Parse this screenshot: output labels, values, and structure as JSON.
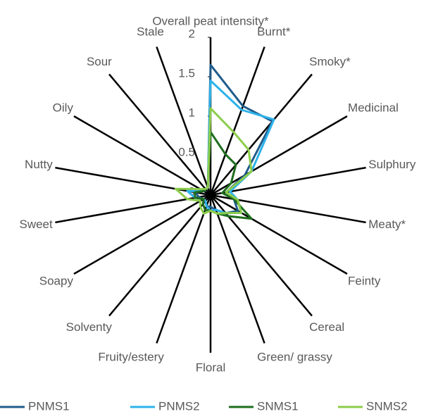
{
  "chart_data": {
    "type": "radar",
    "categories": [
      "Overall peat intensity*",
      "Burnt*",
      "Smoky*",
      "Medicinal",
      "Sulphury",
      "Meaty*",
      "Feinty",
      "Cereal",
      "Green/ grassy",
      "Floral",
      "Fruity/estery",
      "Solventy",
      "Soapy",
      "Sweet",
      "Nutty",
      "Oily",
      "Sour",
      "Stale"
    ],
    "rlim": [
      0,
      2
    ],
    "rticks": [
      0,
      0.5,
      1,
      1.5,
      2
    ],
    "legend": "bottom",
    "series": [
      {
        "name": "PNMS1",
        "color": "#1f5c8b",
        "values": [
          1.65,
          1.2,
          1.22,
          0.5,
          0.2,
          0.3,
          0.4,
          0.3,
          0.2,
          0.15,
          0.15,
          0.1,
          0.1,
          0.15,
          0.2,
          0.1,
          0.1,
          0.1
        ]
      },
      {
        "name": "PNMS2",
        "color": "#2db3ea",
        "values": [
          1.45,
          1.15,
          1.25,
          0.6,
          0.25,
          0.35,
          0.45,
          0.3,
          0.2,
          0.2,
          0.15,
          0.1,
          0.1,
          0.2,
          0.3,
          0.1,
          0.1,
          0.1
        ]
      },
      {
        "name": "SNMS1",
        "color": "#1e6e1e",
        "values": [
          0.8,
          0.55,
          0.5,
          0.3,
          0.15,
          0.3,
          0.6,
          0.35,
          0.25,
          0.2,
          0.2,
          0.15,
          0.1,
          0.2,
          0.2,
          0.1,
          0.1,
          0.1
        ]
      },
      {
        "name": "SNMS2",
        "color": "#8ccd4b",
        "values": [
          1.1,
          0.85,
          0.75,
          0.6,
          0.2,
          0.35,
          0.45,
          0.3,
          0.25,
          0.2,
          0.25,
          0.2,
          0.15,
          0.3,
          0.45,
          0.15,
          0.1,
          0.1
        ]
      }
    ]
  }
}
